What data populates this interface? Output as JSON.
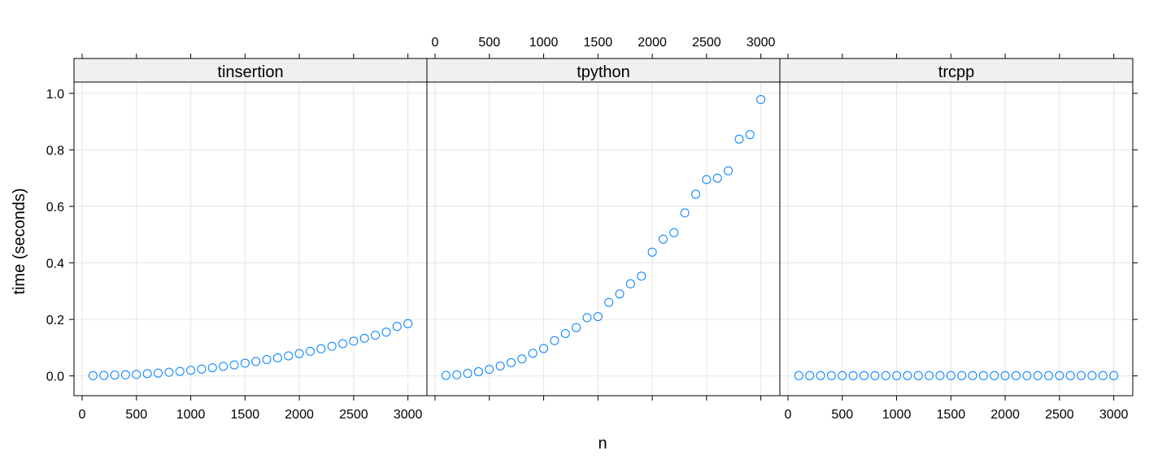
{
  "chart_data": {
    "type": "scatter",
    "xlabel": "n",
    "ylabel": "time (seconds)",
    "xlim": [
      -75,
      3175
    ],
    "ylim": [
      -0.07,
      1.04
    ],
    "xticks": [
      0,
      500,
      1000,
      1500,
      2000,
      2500,
      3000
    ],
    "xtick_labels": [
      "0",
      "500",
      "1000",
      "1500",
      "2000",
      "2500",
      "3000"
    ],
    "yticks": [
      0.0,
      0.2,
      0.4,
      0.6,
      0.8,
      1.0
    ],
    "ytick_labels": [
      "0.0",
      "0.2",
      "0.4",
      "0.6",
      "0.8",
      "1.0"
    ],
    "grid": true,
    "marker_color": "#0080ff",
    "x": [
      100,
      200,
      300,
      400,
      500,
      600,
      700,
      800,
      900,
      1000,
      1100,
      1200,
      1300,
      1400,
      1500,
      1600,
      1700,
      1800,
      1900,
      2000,
      2100,
      2200,
      2300,
      2400,
      2500,
      2600,
      2700,
      2800,
      2900,
      3000
    ],
    "panels": [
      {
        "name": "tinsertion",
        "values": [
          0.001,
          0.002,
          0.003,
          0.004,
          0.005,
          0.008,
          0.01,
          0.013,
          0.016,
          0.02,
          0.024,
          0.029,
          0.034,
          0.039,
          0.045,
          0.051,
          0.058,
          0.064,
          0.071,
          0.079,
          0.087,
          0.096,
          0.105,
          0.114,
          0.123,
          0.133,
          0.144,
          0.155,
          0.175,
          0.185
        ]
      },
      {
        "name": "tpython",
        "values": [
          0.002,
          0.004,
          0.009,
          0.015,
          0.023,
          0.035,
          0.047,
          0.06,
          0.08,
          0.097,
          0.125,
          0.15,
          0.171,
          0.206,
          0.21,
          0.26,
          0.29,
          0.326,
          0.353,
          0.438,
          0.484,
          0.507,
          0.577,
          0.643,
          0.695,
          0.7,
          0.726,
          0.838,
          0.854,
          0.978
        ]
      },
      {
        "name": "trcpp",
        "values": [
          0.001,
          0.001,
          0.001,
          0.001,
          0.001,
          0.001,
          0.001,
          0.001,
          0.001,
          0.001,
          0.001,
          0.001,
          0.001,
          0.001,
          0.001,
          0.001,
          0.001,
          0.001,
          0.001,
          0.001,
          0.001,
          0.001,
          0.001,
          0.001,
          0.001,
          0.001,
          0.001,
          0.001,
          0.001,
          0.001
        ]
      }
    ]
  }
}
